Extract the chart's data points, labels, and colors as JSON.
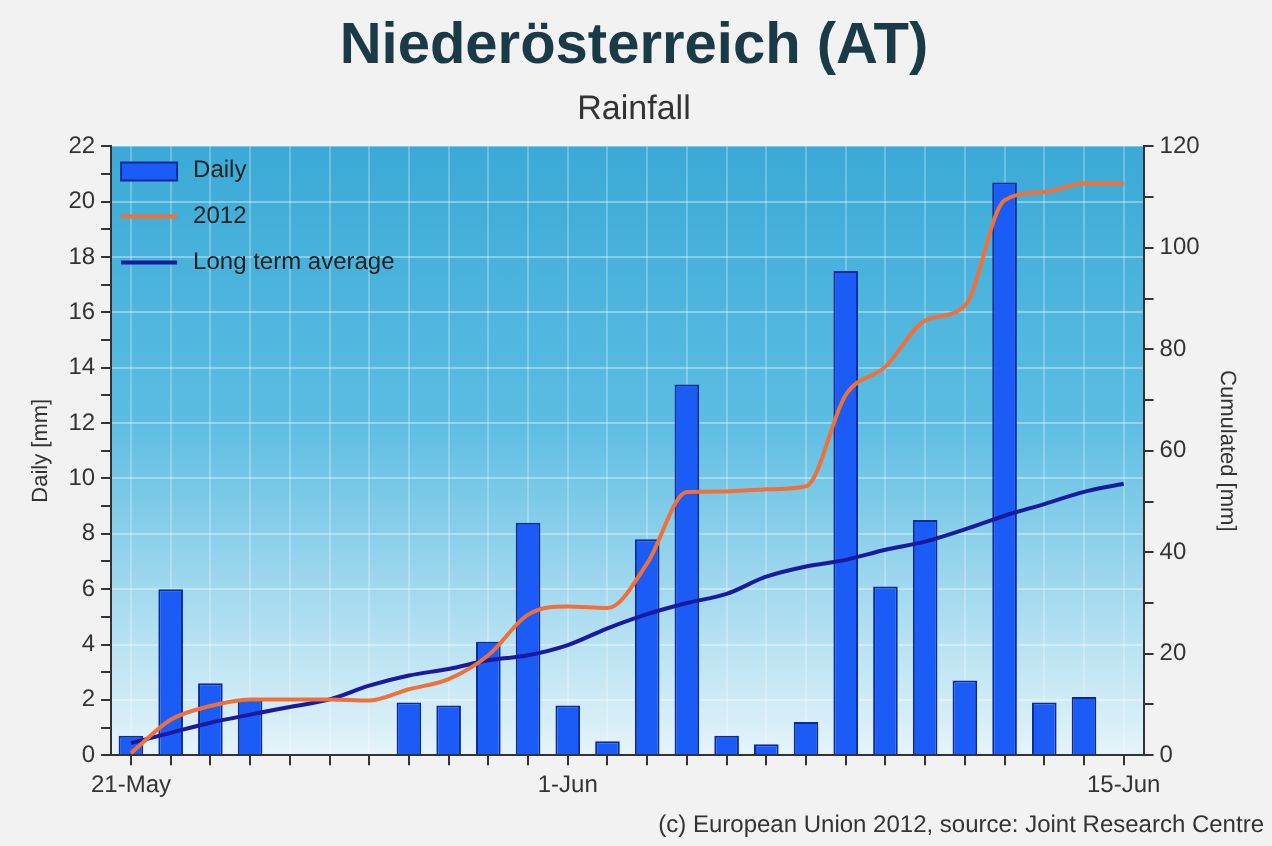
{
  "chart_data": {
    "type": "bar",
    "title": "Niederösterreich (AT)",
    "subtitle": "Rainfall",
    "ylabel": "Daily [mm]",
    "y2label": "Cumulated [mm]",
    "categories": [
      "21-May",
      null,
      null,
      null,
      null,
      null,
      null,
      null,
      null,
      null,
      null,
      "1-Jun",
      null,
      null,
      null,
      null,
      null,
      null,
      null,
      null,
      null,
      null,
      null,
      null,
      null,
      "15-Jun"
    ],
    "series": [
      {
        "name": "Daily",
        "color": "#1a5cf5",
        "values": [
          0.7,
          6,
          2.6,
          2.0,
          null,
          null,
          null,
          1.9,
          1.8,
          4.1,
          8.4,
          1.8,
          0.5,
          7.8,
          13.4,
          0.7,
          0.4,
          1.2,
          17.5,
          6.1,
          8.5,
          2.7,
          20.7,
          1.9,
          2.1,
          null
        ]
      },
      {
        "name": "2012",
        "type": "line",
        "axis": "y2",
        "color": "#f0703a",
        "values": [
          0.4,
          7,
          9.7,
          11,
          11,
          11,
          10.8,
          13,
          15,
          19.7,
          27.7,
          29.3,
          29,
          37.8,
          51.9,
          52,
          52.4,
          53,
          71,
          76.6,
          85.7,
          88.6,
          109.4,
          111,
          112.7,
          112.7
        ]
      },
      {
        "name": "Long term average",
        "type": "line",
        "axis": "y2",
        "color": "#1a1aa0",
        "values": [
          2.4,
          4.4,
          6.4,
          8,
          9.5,
          11,
          13.7,
          15.7,
          17,
          18.7,
          19.7,
          21.7,
          25,
          27.8,
          30,
          31.8,
          35.2,
          37.2,
          38.5,
          40.5,
          42.1,
          44.5,
          47.2,
          49.5,
          51.9,
          53.5
        ]
      }
    ],
    "ylim": [
      0,
      22
    ],
    "yticks": [
      0,
      {
        "value": 1,
        "label": null
      },
      2,
      {
        "value": 3,
        "label": null
      },
      4,
      {
        "value": 5,
        "label": null
      },
      6,
      {
        "value": 7,
        "label": null
      },
      8,
      {
        "value": 9,
        "label": null
      },
      10,
      {
        "value": 11,
        "label": null
      },
      12,
      {
        "value": 13,
        "label": null
      },
      14,
      {
        "value": 15,
        "label": null
      },
      16,
      {
        "value": 17,
        "label": null
      },
      18,
      {
        "value": 19,
        "label": null
      },
      20,
      {
        "value": 21,
        "label": null
      },
      22
    ],
    "y2lim": [
      0,
      120
    ],
    "y2ticks": [
      0,
      {
        "value": 10,
        "label": null
      },
      20,
      {
        "value": 30,
        "label": null
      },
      40,
      {
        "value": 50,
        "label": null
      },
      60,
      {
        "value": 70,
        "label": null
      },
      80,
      {
        "value": 90,
        "label": null
      },
      100,
      {
        "value": 110,
        "label": null
      },
      120
    ],
    "grid": true,
    "legend": "top left",
    "marker": "none",
    "annotations": [
      "(c) European Union 2012, source: Joint Research Centre"
    ]
  }
}
